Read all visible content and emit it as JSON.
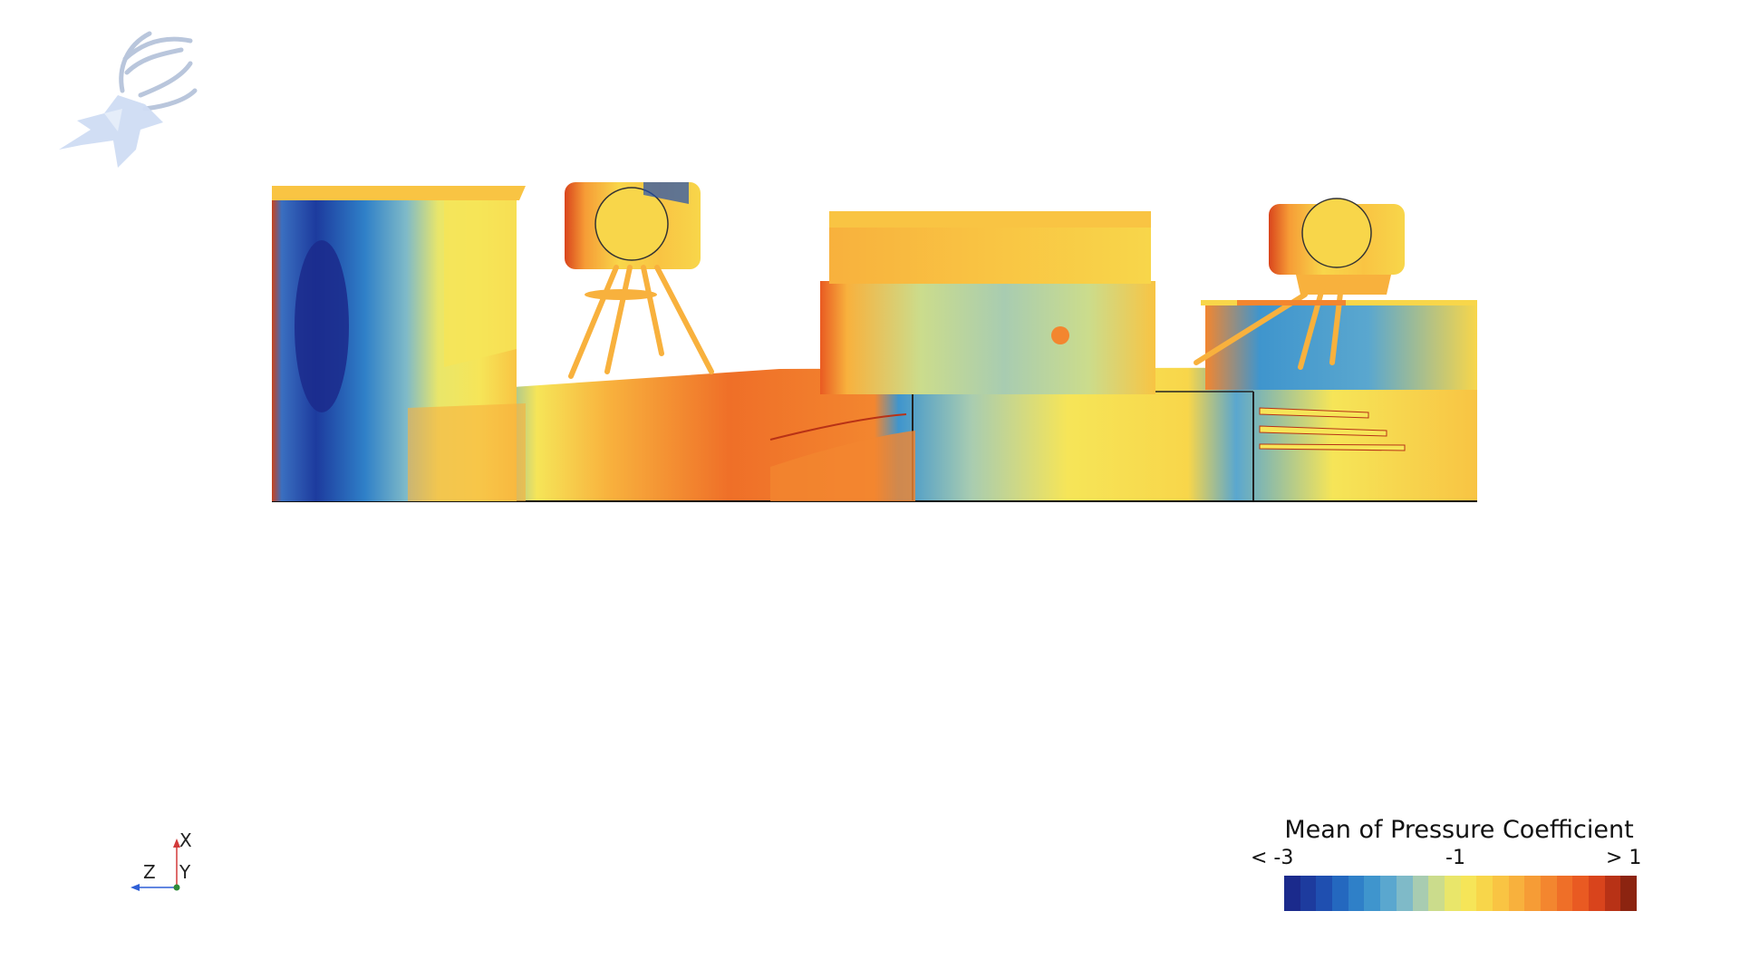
{
  "logo": {
    "icon": "stag-head-logo"
  },
  "orientation_triad": {
    "x_label": "X",
    "y_label": "Y",
    "z_label": "Z",
    "colors": {
      "x": "#d23b3b",
      "y": "#2e8b3a",
      "z": "#2f5fd6"
    }
  },
  "legend": {
    "title": "Mean of Pressure Coefficient",
    "min_label": "< -3",
    "mid_label": "-1",
    "max_label": "> 1",
    "colormap": [
      "#1b2a8c",
      "#1d3b9e",
      "#1f4fb0",
      "#2468bf",
      "#2f80c8",
      "#3f95cd",
      "#5aa7cf",
      "#7fbac8",
      "#a8ccb1",
      "#cbdc8c",
      "#e9e66a",
      "#f6e558",
      "#f8d64a",
      "#f9c443",
      "#f8b13d",
      "#f69c36",
      "#f3862f",
      "#ef6f28",
      "#e95a22",
      "#d9441c",
      "#b83216",
      "#8c2410"
    ]
  },
  "scene": {
    "description_icon": "pressure-field-rendering"
  }
}
